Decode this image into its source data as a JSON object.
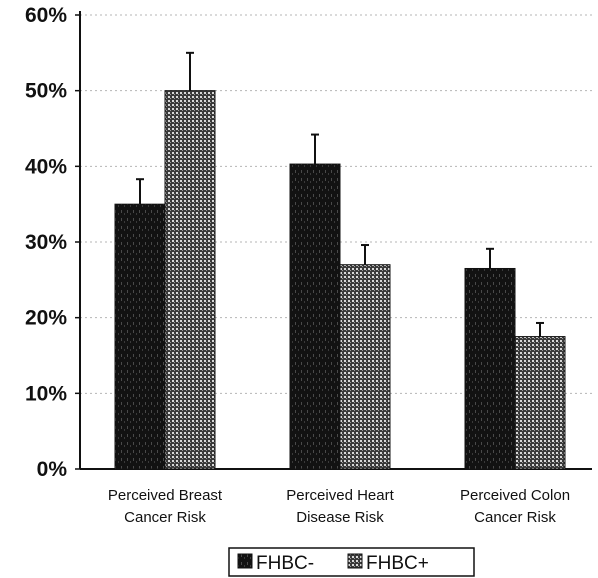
{
  "chart_data": {
    "type": "bar",
    "categories": [
      [
        "Perceived Breast",
        "Cancer Risk"
      ],
      [
        "Perceived  Heart",
        "Disease Risk"
      ],
      [
        "Perceived Colon",
        "Cancer Risk"
      ]
    ],
    "series": [
      {
        "name": "FHBC-",
        "values": [
          35,
          40.3,
          26.5
        ],
        "errors": [
          3.3,
          3.9,
          2.6
        ],
        "pattern": "dark"
      },
      {
        "name": "FHBC+",
        "values": [
          50,
          27,
          17.5
        ],
        "errors": [
          5,
          2.6,
          1.8
        ],
        "pattern": "dotted"
      }
    ],
    "yticks": [
      "0%",
      "10%",
      "20%",
      "30%",
      "40%",
      "50%",
      "60%"
    ],
    "ylim": [
      0,
      60
    ],
    "grid": true,
    "legend_position": "bottom-center",
    "title": "",
    "xlabel": "",
    "ylabel": ""
  }
}
